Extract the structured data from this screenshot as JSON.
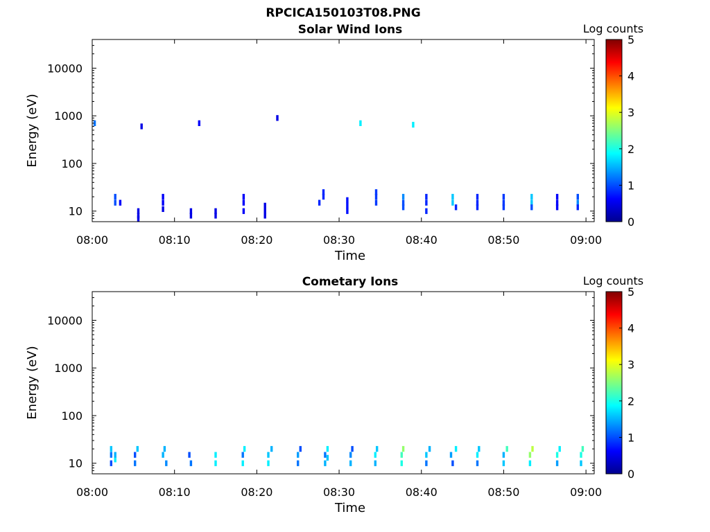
{
  "figure_title": "RPCICA150103T08.PNG",
  "chart_data": [
    {
      "type": "heatmap",
      "title": "Solar Wind Ions",
      "xlabel": "Time",
      "ylabel": "Energy (eV)",
      "y_scale": "log",
      "ylim": [
        6,
        40000
      ],
      "xlim": [
        "08:00",
        "09:01"
      ],
      "x_ticks": [
        "08:00",
        "08:10",
        "08:20",
        "08:30",
        "08:40",
        "08:50",
        "09:00"
      ],
      "y_ticks": [
        "10",
        "100",
        "1000",
        "10000"
      ],
      "colorbar": {
        "label": "Log counts",
        "range": [
          0,
          5
        ],
        "ticks": [
          "0",
          "1",
          "2",
          "3",
          "4",
          "5"
        ],
        "colormap": "jet"
      },
      "cells": [
        [
          2.8,
          15,
          1.0
        ],
        [
          2.8,
          20,
          1.0
        ],
        [
          3.4,
          15,
          0.6
        ],
        [
          5.6,
          10,
          0.5
        ],
        [
          5.6,
          8,
          0.5
        ],
        [
          5.6,
          7,
          0.5
        ],
        [
          8.6,
          15,
          0.6
        ],
        [
          8.6,
          20,
          0.6
        ],
        [
          8.6,
          11,
          0.5
        ],
        [
          12.0,
          8,
          0.5
        ],
        [
          12.0,
          10,
          0.5
        ],
        [
          15.0,
          8,
          0.5
        ],
        [
          15.0,
          10,
          0.5
        ],
        [
          18.4,
          15,
          0.6
        ],
        [
          18.4,
          20,
          0.6
        ],
        [
          18.4,
          10,
          0.6
        ],
        [
          21.0,
          10,
          0.5
        ],
        [
          21.0,
          8,
          0.5
        ],
        [
          21.0,
          13,
          0.5
        ],
        [
          27.6,
          15,
          0.8
        ],
        [
          28.1,
          20,
          0.8
        ],
        [
          28.1,
          25,
          0.8
        ],
        [
          31.0,
          10,
          0.7
        ],
        [
          31.0,
          13,
          0.7
        ],
        [
          31.0,
          17,
          0.7
        ],
        [
          34.5,
          15,
          0.9
        ],
        [
          34.5,
          20,
          0.9
        ],
        [
          34.5,
          25,
          0.9
        ],
        [
          37.8,
          15,
          1.0
        ],
        [
          37.8,
          20,
          1.3
        ],
        [
          37.8,
          12,
          1.0
        ],
        [
          40.6,
          15,
          0.8
        ],
        [
          40.6,
          20,
          0.8
        ],
        [
          40.6,
          10,
          0.8
        ],
        [
          43.8,
          15,
          1.6
        ],
        [
          43.8,
          20,
          1.6
        ],
        [
          44.2,
          12,
          0.8
        ],
        [
          46.8,
          15,
          0.8
        ],
        [
          46.8,
          12,
          0.8
        ],
        [
          46.8,
          20,
          0.8
        ],
        [
          50.0,
          15,
          0.9
        ],
        [
          50.0,
          20,
          0.9
        ],
        [
          50.0,
          12,
          0.9
        ],
        [
          53.4,
          15,
          1.6
        ],
        [
          53.4,
          20,
          1.6
        ],
        [
          53.4,
          12,
          1.0
        ],
        [
          56.5,
          15,
          0.6
        ],
        [
          56.5,
          12,
          0.6
        ],
        [
          56.5,
          20,
          0.6
        ],
        [
          59.0,
          15,
          1.3
        ],
        [
          59.0,
          20,
          1.0
        ],
        [
          59.0,
          12,
          0.8
        ],
        [
          32.6,
          700,
          1.8
        ],
        [
          39.0,
          650,
          1.8
        ],
        [
          6.0,
          600,
          0.5
        ],
        [
          0.3,
          700,
          1.2
        ],
        [
          13.0,
          700,
          0.6
        ],
        [
          22.5,
          900,
          0.5
        ]
      ]
    },
    {
      "type": "heatmap",
      "title": "Cometary Ions",
      "xlabel": "Time",
      "ylabel": "Energy (eV)",
      "y_scale": "log",
      "ylim": [
        6,
        40000
      ],
      "xlim": [
        "08:00",
        "09:01"
      ],
      "x_ticks": [
        "08:00",
        "08:10",
        "08:20",
        "08:30",
        "08:40",
        "08:50",
        "09:00"
      ],
      "y_ticks": [
        "10",
        "100",
        "1000",
        "10000"
      ],
      "colorbar": {
        "label": "Log counts",
        "range": [
          0,
          5
        ],
        "ticks": [
          "0",
          "1",
          "2",
          "3",
          "4",
          "5"
        ],
        "colormap": "jet"
      },
      "cells": [
        [
          2.3,
          15,
          1.2
        ],
        [
          2.3,
          10,
          1.0
        ],
        [
          2.3,
          20,
          1.6
        ],
        [
          2.8,
          12,
          1.8
        ],
        [
          2.8,
          15,
          1.5
        ],
        [
          5.2,
          15,
          1.0
        ],
        [
          5.2,
          10,
          1.2
        ],
        [
          5.5,
          20,
          1.6
        ],
        [
          8.6,
          15,
          1.5
        ],
        [
          8.8,
          20,
          1.5
        ],
        [
          9.0,
          10,
          1.3
        ],
        [
          11.8,
          15,
          1.0
        ],
        [
          12.0,
          10,
          1.2
        ],
        [
          15.0,
          15,
          1.8
        ],
        [
          15.0,
          10,
          1.8
        ],
        [
          18.3,
          15,
          1.2
        ],
        [
          18.3,
          10,
          1.8
        ],
        [
          18.5,
          20,
          1.8
        ],
        [
          21.4,
          15,
          1.6
        ],
        [
          21.4,
          10,
          1.8
        ],
        [
          21.8,
          20,
          1.5
        ],
        [
          25.0,
          15,
          1.4
        ],
        [
          25.0,
          10,
          1.2
        ],
        [
          25.3,
          20,
          1.0
        ],
        [
          28.3,
          15,
          1.2
        ],
        [
          28.3,
          10,
          1.5
        ],
        [
          28.6,
          20,
          1.8
        ],
        [
          28.6,
          13,
          1.6
        ],
        [
          31.4,
          15,
          1.3
        ],
        [
          31.4,
          10,
          1.5
        ],
        [
          31.6,
          20,
          1.0
        ],
        [
          34.4,
          15,
          1.8
        ],
        [
          34.4,
          10,
          1.5
        ],
        [
          34.6,
          20,
          1.6
        ],
        [
          37.6,
          15,
          2.2
        ],
        [
          37.6,
          10,
          2.0
        ],
        [
          37.8,
          20,
          2.6
        ],
        [
          40.6,
          15,
          1.6
        ],
        [
          40.6,
          10,
          1.2
        ],
        [
          41.0,
          20,
          1.5
        ],
        [
          43.6,
          15,
          1.4
        ],
        [
          43.8,
          10,
          1.0
        ],
        [
          44.2,
          20,
          1.8
        ],
        [
          46.8,
          15,
          1.8
        ],
        [
          46.8,
          10,
          1.2
        ],
        [
          47.0,
          20,
          1.6
        ],
        [
          50.0,
          15,
          1.5
        ],
        [
          50.0,
          10,
          1.6
        ],
        [
          50.4,
          20,
          2.2
        ],
        [
          53.2,
          15,
          2.6
        ],
        [
          53.2,
          10,
          1.8
        ],
        [
          53.5,
          20,
          2.8
        ],
        [
          56.5,
          15,
          2.0
        ],
        [
          56.5,
          10,
          1.4
        ],
        [
          56.8,
          20,
          1.8
        ],
        [
          59.4,
          15,
          2.0
        ],
        [
          59.4,
          10,
          1.6
        ],
        [
          59.6,
          20,
          2.2
        ]
      ]
    }
  ]
}
